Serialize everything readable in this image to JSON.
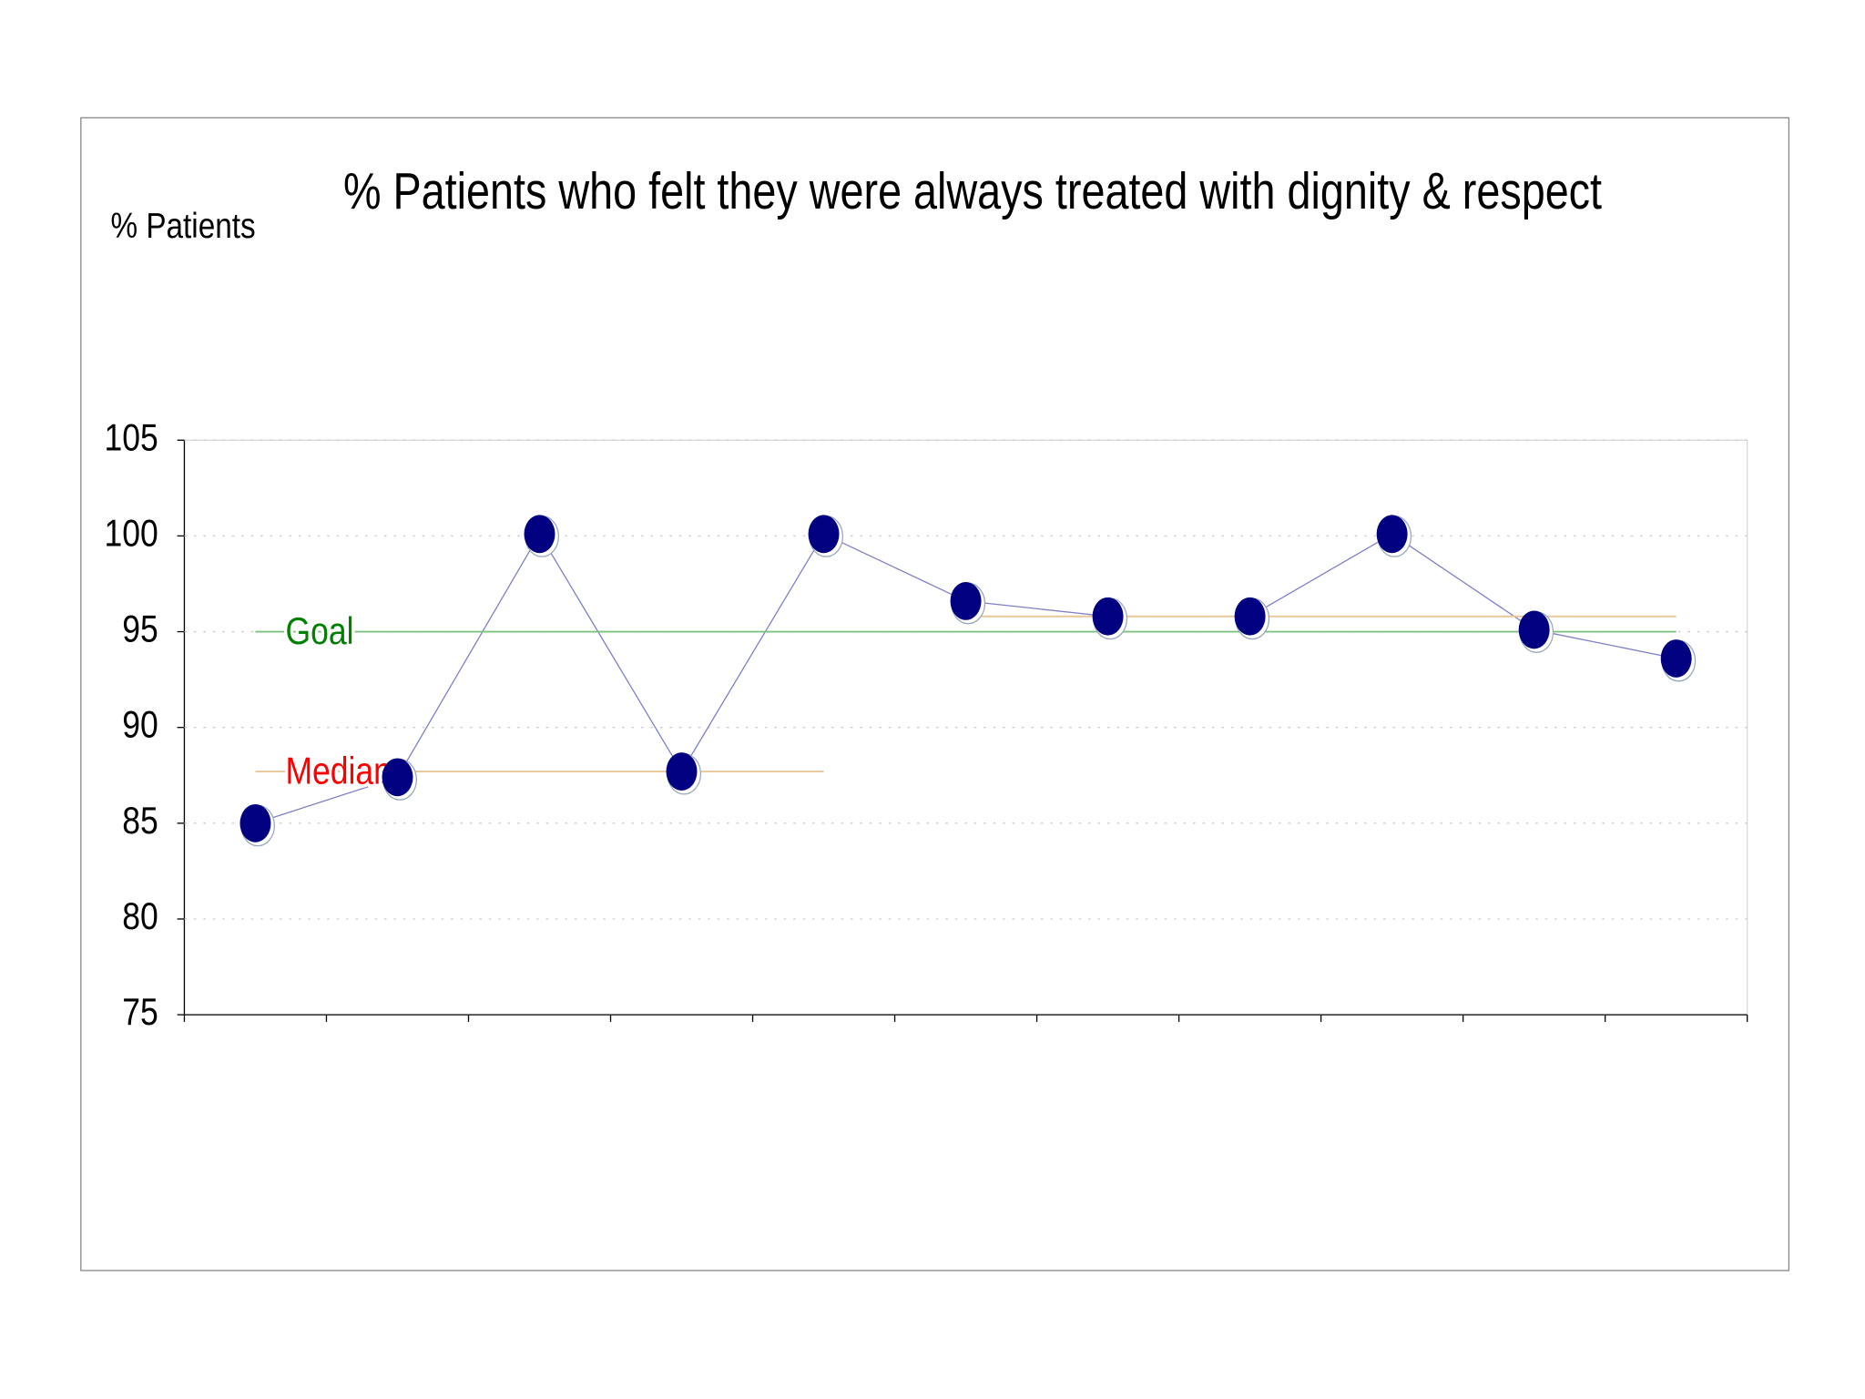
{
  "chart_data": {
    "type": "line",
    "title": "% Patients who felt they were always treated with dignity & respect",
    "y_axis_label": "% Patients",
    "categories": [
      null,
      null,
      null,
      null,
      null,
      null,
      null,
      null,
      null,
      null,
      null
    ],
    "series": [
      {
        "values": [
          85,
          87.4,
          100.1,
          87.7,
          100.1,
          96.6,
          95.8,
          95.8,
          100.1,
          95.1,
          93.6
        ],
        "color": "#000080",
        "line_color": "#8080c8"
      },
      {
        "name": "Goal",
        "values": [
          95,
          95,
          95,
          95,
          95,
          95,
          95,
          95,
          95,
          95,
          95
        ],
        "color": "#008000",
        "line_color": "#80c080",
        "style": "reference"
      },
      {
        "name": "Median",
        "values": [
          87.7,
          87.7,
          87.7,
          87.7,
          87.7,
          95.8,
          95.8,
          95.8,
          95.8,
          95.8,
          95.8
        ],
        "color": "#ff0000",
        "line_color": "#e8c898",
        "style": "median"
      }
    ],
    "ylim": [
      75,
      105
    ],
    "yticks": [
      75,
      80,
      85,
      90,
      95,
      100,
      105
    ],
    "grid": true
  }
}
